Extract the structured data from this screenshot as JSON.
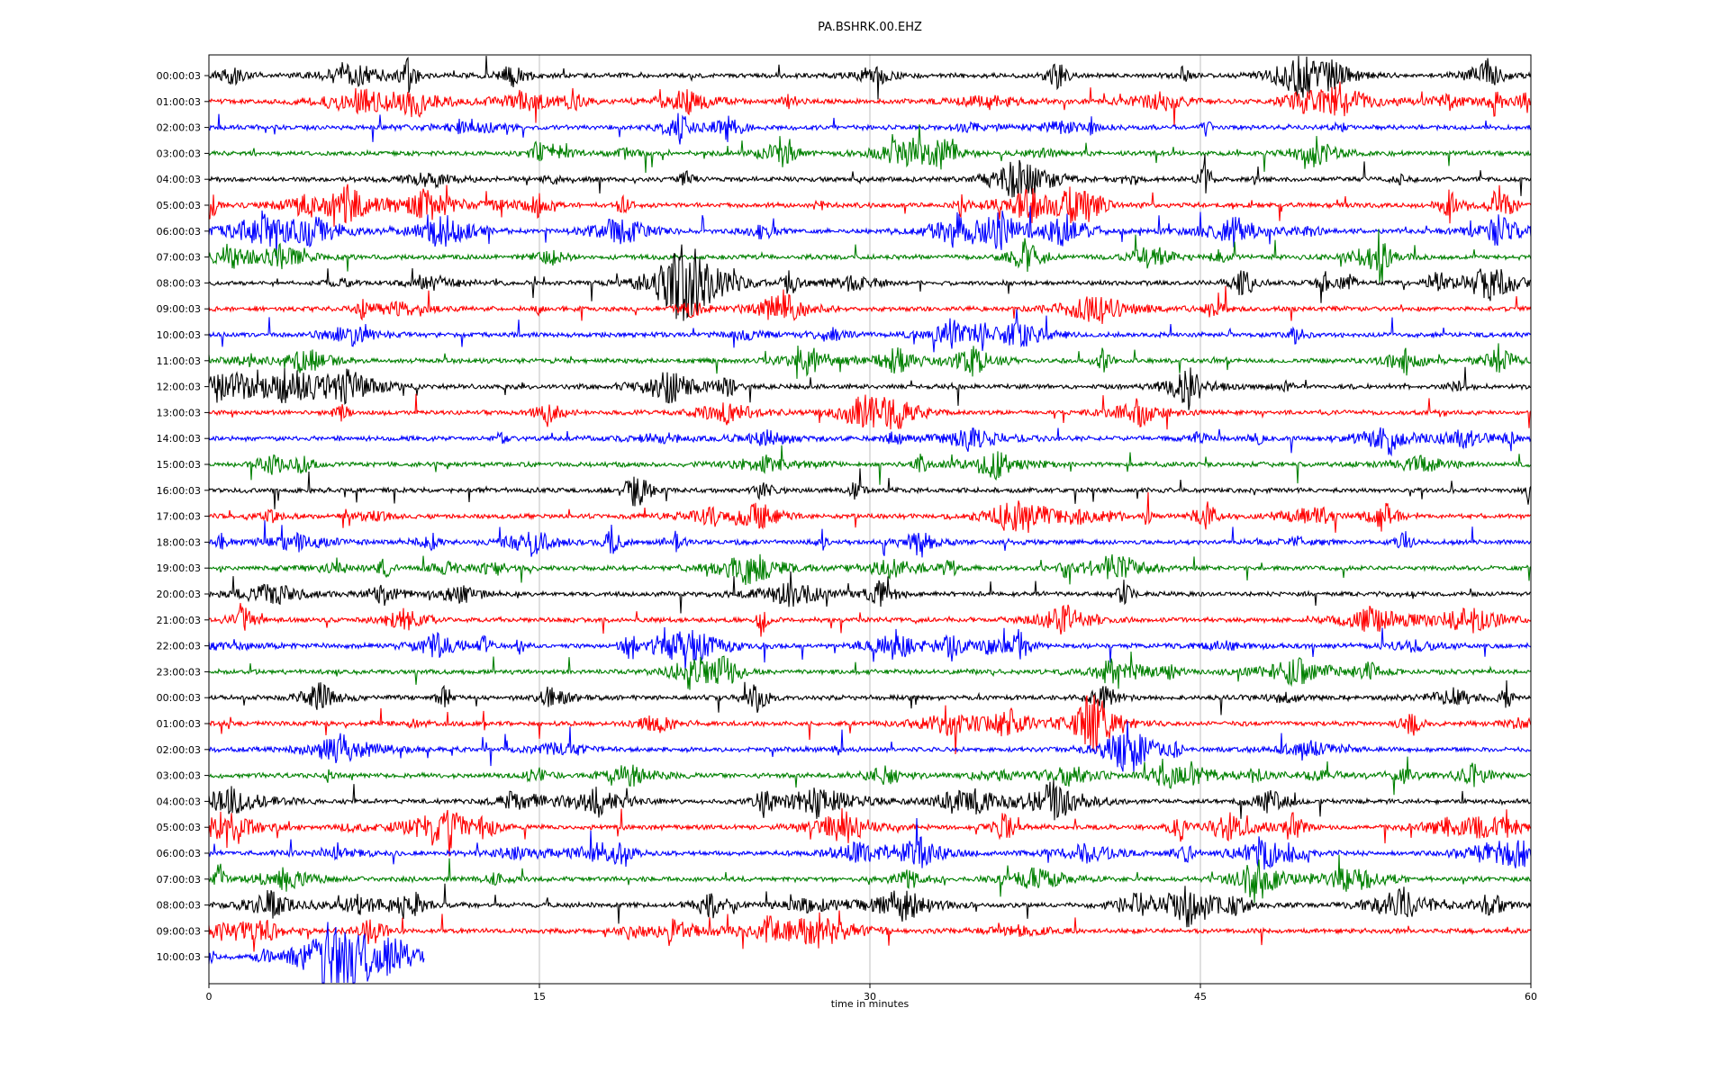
{
  "chart_data": {
    "type": "line",
    "title": "PA.BSHRK.00.EHZ",
    "xlabel": "time in minutes",
    "xlim": [
      0,
      60
    ],
    "x_ticks": [
      0,
      15,
      30,
      45,
      60
    ],
    "grid": "vertical",
    "colors": [
      "#000000",
      "#ff0000",
      "#0000ff",
      "#008000"
    ],
    "rows": [
      {
        "label": "00:00:03",
        "end": 60
      },
      {
        "label": "01:00:03",
        "end": 60
      },
      {
        "label": "02:00:03",
        "end": 60
      },
      {
        "label": "03:00:03",
        "end": 60
      },
      {
        "label": "04:00:03",
        "end": 60
      },
      {
        "label": "05:00:03",
        "end": 60
      },
      {
        "label": "06:00:03",
        "end": 60
      },
      {
        "label": "07:00:03",
        "end": 60
      },
      {
        "label": "08:00:03",
        "end": 60
      },
      {
        "label": "09:00:03",
        "end": 60
      },
      {
        "label": "10:00:03",
        "end": 60
      },
      {
        "label": "11:00:03",
        "end": 60
      },
      {
        "label": "12:00:03",
        "end": 60
      },
      {
        "label": "13:00:03",
        "end": 60
      },
      {
        "label": "14:00:03",
        "end": 60
      },
      {
        "label": "15:00:03",
        "end": 60
      },
      {
        "label": "16:00:03",
        "end": 60
      },
      {
        "label": "17:00:03",
        "end": 60
      },
      {
        "label": "18:00:03",
        "end": 60
      },
      {
        "label": "19:00:03",
        "end": 60
      },
      {
        "label": "20:00:03",
        "end": 60
      },
      {
        "label": "21:00:03",
        "end": 60
      },
      {
        "label": "22:00:03",
        "end": 60
      },
      {
        "label": "23:00:03",
        "end": 60
      },
      {
        "label": "00:00:03",
        "end": 60
      },
      {
        "label": "01:00:03",
        "end": 60
      },
      {
        "label": "02:00:03",
        "end": 60
      },
      {
        "label": "03:00:03",
        "end": 60
      },
      {
        "label": "04:00:03",
        "end": 60
      },
      {
        "label": "05:00:03",
        "end": 60
      },
      {
        "label": "06:00:03",
        "end": 60
      },
      {
        "label": "07:00:03",
        "end": 60
      },
      {
        "label": "08:00:03",
        "end": 60
      },
      {
        "label": "09:00:03",
        "end": 60
      },
      {
        "label": "10:00:03",
        "end": 9.8
      }
    ]
  }
}
